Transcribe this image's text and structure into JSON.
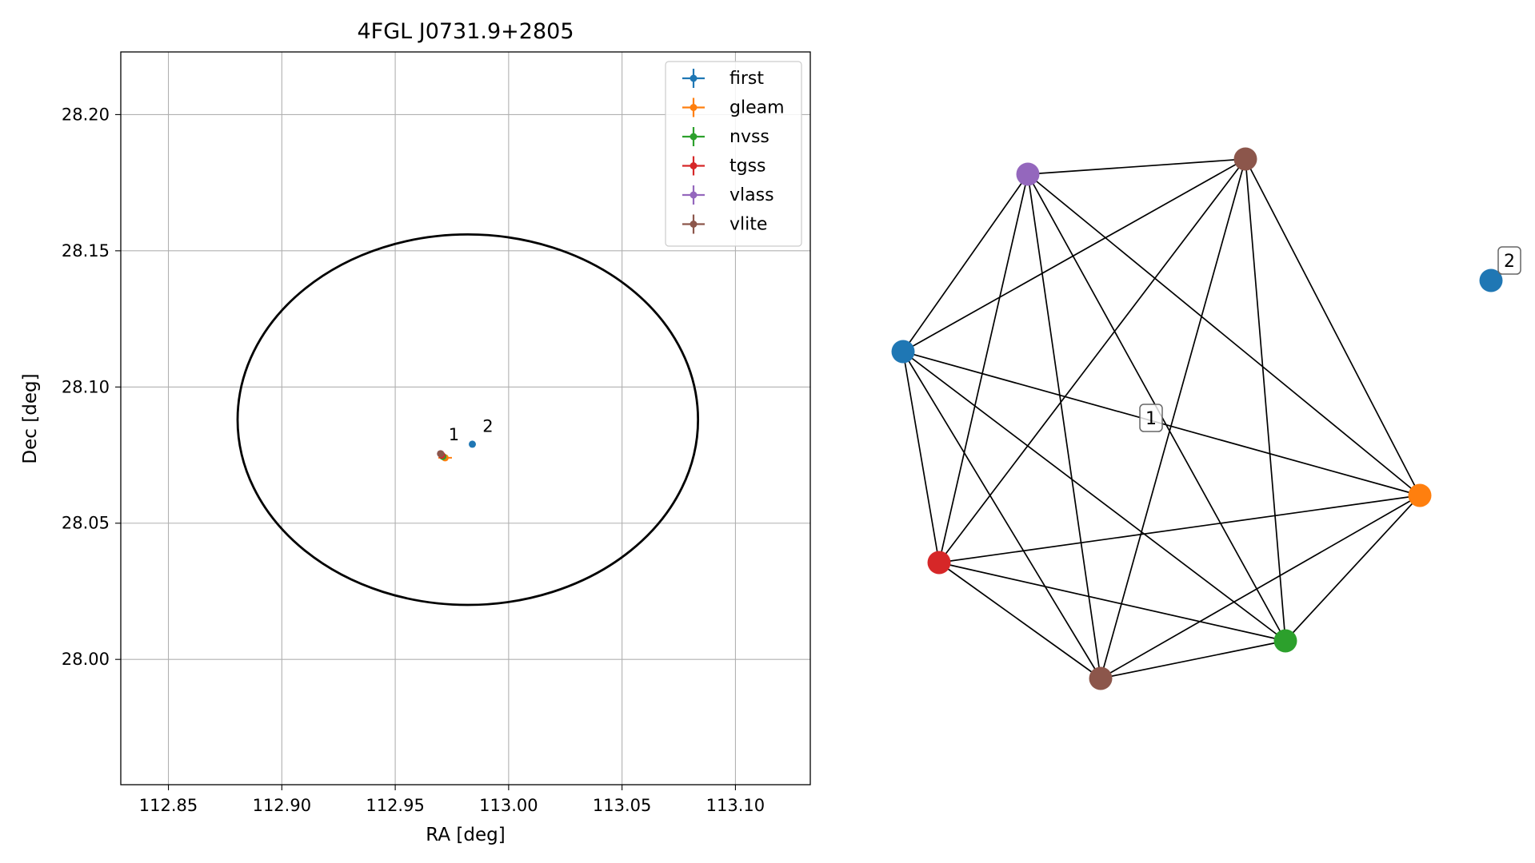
{
  "chart_data": [
    {
      "type": "scatter",
      "title": "4FGL J0731.9+2805",
      "xlabel": "RA [deg]",
      "ylabel": "Dec [deg]",
      "xlim": [
        112.829,
        113.133
      ],
      "ylim": [
        27.954,
        28.223
      ],
      "xticks": [
        112.85,
        112.9,
        112.95,
        113.0,
        113.05,
        113.1
      ],
      "xtick_labels": [
        "112.85",
        "112.90",
        "112.95",
        "113.00",
        "113.05",
        "113.10"
      ],
      "yticks": [
        28.0,
        28.05,
        28.1,
        28.15,
        28.2
      ],
      "ytick_labels": [
        "28.00",
        "28.05",
        "28.10",
        "28.15",
        "28.20"
      ],
      "grid": true,
      "legend_position": "top-right",
      "series": [
        {
          "name": "first",
          "color": "#1f77b4",
          "points": [
            {
              "x": 112.984,
              "y": 28.079
            }
          ]
        },
        {
          "name": "gleam",
          "color": "#ff7f0e",
          "points": [
            {
              "x": 112.972,
              "y": 28.074,
              "xerr": 0.003
            }
          ]
        },
        {
          "name": "nvss",
          "color": "#2ca02c",
          "points": [
            {
              "x": 112.971,
              "y": 28.0745
            }
          ]
        },
        {
          "name": "tgss",
          "color": "#d62728",
          "points": [
            {
              "x": 112.9705,
              "y": 28.075
            }
          ]
        },
        {
          "name": "vlass",
          "color": "#9467bd",
          "points": [
            {
              "x": 112.97,
              "y": 28.0755
            }
          ]
        },
        {
          "name": "vlite",
          "color": "#8c564b",
          "points": [
            {
              "x": 112.97,
              "y": 28.0755
            }
          ]
        }
      ],
      "ellipse": {
        "center_x": 112.982,
        "center_y": 28.088,
        "semi_axis_x": 0.1015,
        "semi_axis_y": 0.068,
        "color": "#000000"
      },
      "annotations": [
        {
          "text": "1",
          "x": 112.9735,
          "y": 28.0805
        },
        {
          "text": "2",
          "x": 112.9885,
          "y": 28.0835
        }
      ]
    },
    {
      "type": "network",
      "nodes": [
        {
          "id": "first-1",
          "color": "#1f77b4"
        },
        {
          "id": "vlass",
          "color": "#9467bd"
        },
        {
          "id": "vlite-top",
          "color": "#8c564b"
        },
        {
          "id": "gleam",
          "color": "#ff7f0e"
        },
        {
          "id": "nvss",
          "color": "#2ca02c"
        },
        {
          "id": "vlite-bottom",
          "color": "#8c564b"
        },
        {
          "id": "tgss",
          "color": "#d62728"
        },
        {
          "id": "first-2",
          "color": "#1f77b4"
        }
      ],
      "cluster_labels": [
        {
          "text": "1"
        },
        {
          "text": "2"
        }
      ]
    }
  ]
}
